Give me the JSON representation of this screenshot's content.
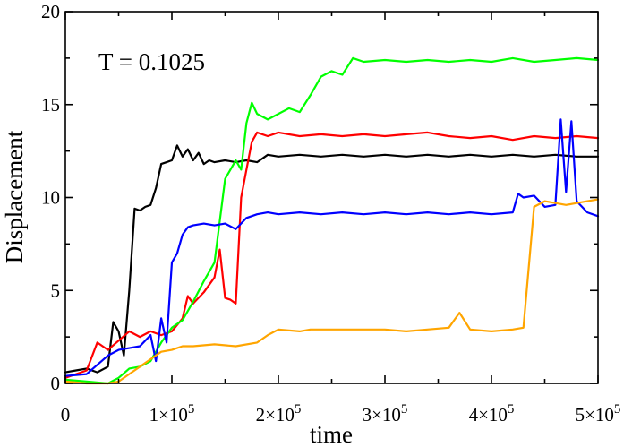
{
  "chart_data": {
    "type": "line",
    "title": "",
    "annotation": "T = 0.1025",
    "xlabel": "time",
    "ylabel": "Displacement",
    "xlim": [
      0,
      500000
    ],
    "ylim": [
      0,
      20
    ],
    "grid": false,
    "legend": "none",
    "x_ticks": [
      {
        "value": 0,
        "mantissa": "0",
        "exp": ""
      },
      {
        "value": 100000,
        "mantissa": "1×10",
        "exp": "5"
      },
      {
        "value": 200000,
        "mantissa": "2×10",
        "exp": "5"
      },
      {
        "value": 300000,
        "mantissa": "3×10",
        "exp": "5"
      },
      {
        "value": 400000,
        "mantissa": "4×10",
        "exp": "5"
      },
      {
        "value": 500000,
        "mantissa": "5×10",
        "exp": "5"
      }
    ],
    "y_ticks": [
      {
        "value": 0,
        "label": "0"
      },
      {
        "value": 5,
        "label": "5"
      },
      {
        "value": 10,
        "label": "10"
      },
      {
        "value": 15,
        "label": "15"
      },
      {
        "value": 20,
        "label": "20"
      }
    ],
    "series": [
      {
        "name": "black",
        "color": "#000000",
        "x": [
          0,
          10000,
          20000,
          30000,
          40000,
          45000,
          50000,
          55000,
          60000,
          65000,
          70000,
          75000,
          80000,
          85000,
          90000,
          95000,
          100000,
          105000,
          110000,
          115000,
          120000,
          125000,
          130000,
          135000,
          140000,
          150000,
          160000,
          170000,
          180000,
          190000,
          200000,
          220000,
          240000,
          260000,
          280000,
          300000,
          320000,
          340000,
          360000,
          380000,
          400000,
          420000,
          440000,
          460000,
          480000,
          500000
        ],
        "y": [
          0.6,
          0.7,
          0.8,
          0.6,
          0.9,
          3.3,
          2.8,
          1.5,
          5.0,
          9.4,
          9.3,
          9.5,
          9.6,
          10.5,
          11.8,
          11.9,
          12.0,
          12.8,
          12.2,
          12.6,
          12.0,
          12.4,
          11.8,
          12.0,
          11.9,
          12.0,
          11.9,
          12.0,
          11.9,
          12.3,
          12.2,
          12.3,
          12.2,
          12.3,
          12.2,
          12.3,
          12.2,
          12.3,
          12.2,
          12.3,
          12.2,
          12.3,
          12.2,
          12.3,
          12.2,
          12.2
        ]
      },
      {
        "name": "red",
        "color": "#ff0000",
        "x": [
          0,
          10000,
          20000,
          30000,
          40000,
          50000,
          60000,
          70000,
          80000,
          90000,
          100000,
          110000,
          115000,
          120000,
          130000,
          140000,
          145000,
          150000,
          155000,
          160000,
          165000,
          170000,
          175000,
          180000,
          190000,
          200000,
          220000,
          240000,
          260000,
          280000,
          300000,
          320000,
          340000,
          360000,
          380000,
          400000,
          420000,
          440000,
          460000,
          480000,
          500000
        ],
        "y": [
          0.3,
          0.5,
          0.7,
          2.2,
          1.8,
          2.3,
          2.8,
          2.5,
          2.8,
          2.6,
          2.8,
          3.5,
          4.7,
          4.3,
          4.9,
          5.7,
          7.2,
          4.6,
          4.5,
          4.3,
          10.0,
          11.5,
          13.0,
          13.5,
          13.3,
          13.5,
          13.3,
          13.4,
          13.3,
          13.4,
          13.3,
          13.4,
          13.5,
          13.3,
          13.2,
          13.3,
          13.1,
          13.3,
          13.2,
          13.3,
          13.2
        ]
      },
      {
        "name": "green",
        "color": "#00ff00",
        "x": [
          0,
          20000,
          40000,
          50000,
          60000,
          70000,
          80000,
          90000,
          100000,
          110000,
          120000,
          130000,
          140000,
          150000,
          155000,
          160000,
          165000,
          170000,
          175000,
          180000,
          190000,
          200000,
          210000,
          220000,
          230000,
          240000,
          250000,
          260000,
          270000,
          280000,
          300000,
          320000,
          340000,
          360000,
          380000,
          400000,
          420000,
          440000,
          460000,
          480000,
          500000
        ],
        "y": [
          0.2,
          0.1,
          0.0,
          0.3,
          0.8,
          0.9,
          1.2,
          2.2,
          3.0,
          3.4,
          4.4,
          5.5,
          6.5,
          11.0,
          11.5,
          12.0,
          11.5,
          14.0,
          15.1,
          14.5,
          14.2,
          14.5,
          14.8,
          14.6,
          15.5,
          16.5,
          16.8,
          16.6,
          17.5,
          17.3,
          17.4,
          17.3,
          17.4,
          17.3,
          17.4,
          17.3,
          17.5,
          17.3,
          17.4,
          17.5,
          17.4
        ]
      },
      {
        "name": "blue",
        "color": "#0000ff",
        "x": [
          0,
          20000,
          40000,
          50000,
          60000,
          70000,
          80000,
          85000,
          90000,
          95000,
          100000,
          105000,
          110000,
          115000,
          120000,
          130000,
          140000,
          150000,
          160000,
          170000,
          180000,
          190000,
          200000,
          220000,
          240000,
          260000,
          280000,
          300000,
          320000,
          340000,
          360000,
          380000,
          400000,
          420000,
          425000,
          430000,
          440000,
          450000,
          460000,
          465000,
          470000,
          475000,
          480000,
          490000,
          500000
        ],
        "y": [
          0.4,
          0.5,
          1.5,
          1.8,
          1.9,
          2.0,
          2.6,
          1.2,
          3.5,
          2.2,
          6.5,
          7.0,
          8.0,
          8.4,
          8.5,
          8.6,
          8.5,
          8.6,
          8.3,
          8.9,
          9.1,
          9.2,
          9.1,
          9.2,
          9.1,
          9.2,
          9.1,
          9.2,
          9.1,
          9.2,
          9.1,
          9.2,
          9.1,
          9.2,
          10.2,
          10.0,
          10.1,
          9.5,
          9.6,
          14.2,
          10.3,
          14.1,
          9.8,
          9.2,
          9.0
        ]
      },
      {
        "name": "orange",
        "color": "#ffa500",
        "x": [
          0,
          20000,
          40000,
          50000,
          60000,
          70000,
          80000,
          90000,
          100000,
          110000,
          120000,
          140000,
          160000,
          180000,
          190000,
          200000,
          220000,
          230000,
          240000,
          260000,
          280000,
          300000,
          320000,
          340000,
          360000,
          370000,
          380000,
          400000,
          420000,
          430000,
          440000,
          450000,
          460000,
          470000,
          480000,
          490000,
          500000
        ],
        "y": [
          0.1,
          0.0,
          0.0,
          0.1,
          0.5,
          0.9,
          1.3,
          1.7,
          1.8,
          2.0,
          2.0,
          2.1,
          2.0,
          2.2,
          2.6,
          2.9,
          2.8,
          2.9,
          2.9,
          2.9,
          2.9,
          2.9,
          2.8,
          2.9,
          3.0,
          3.8,
          2.9,
          2.8,
          2.9,
          3.0,
          9.5,
          9.8,
          9.7,
          9.6,
          9.7,
          9.8,
          9.9
        ]
      }
    ]
  }
}
